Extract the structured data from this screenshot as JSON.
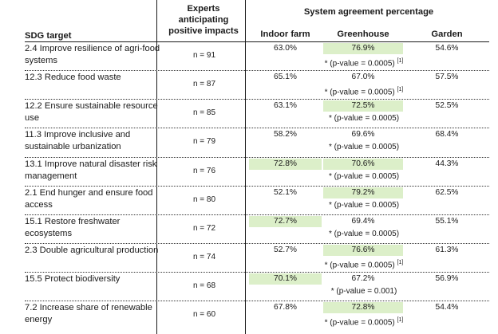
{
  "header": {
    "sdg_target": "SDG target",
    "experts": "Experts anticipating positive impacts",
    "system_agreement": "System agreement percentage",
    "indoor_farm": "Indoor farm",
    "greenhouse": "Greenhouse",
    "garden": "Garden"
  },
  "rows": [
    {
      "sdg": "2.4 Improve resilience of agri-food systems",
      "n": "n = 91",
      "indoor": "63.0%",
      "indoor_hi": false,
      "greenhouse": "76.9%",
      "greenhouse_hi": true,
      "garden": "54.6%",
      "note": "* (p-value = 0.0005)",
      "ref": "[1]"
    },
    {
      "sdg": "12.3 Reduce food waste",
      "n": "n = 87",
      "indoor": "65.1%",
      "indoor_hi": false,
      "greenhouse": "67.0%",
      "greenhouse_hi": false,
      "garden": "57.5%",
      "note": "* (p-value = 0.0005)",
      "ref": "[1]"
    },
    {
      "sdg": "12.2 Ensure sustainable resource use",
      "n": "n = 85",
      "indoor": "63.1%",
      "indoor_hi": false,
      "greenhouse": "72.5%",
      "greenhouse_hi": true,
      "garden": "52.5%",
      "note": "* (p-value = 0.0005)",
      "ref": ""
    },
    {
      "sdg": "11.3 Improve inclusive and sustainable urbanization",
      "n": "n = 79",
      "indoor": "58.2%",
      "indoor_hi": false,
      "greenhouse": "69.6%",
      "greenhouse_hi": false,
      "garden": "68.4%",
      "note": "* (p-value = 0.0005)",
      "ref": ""
    },
    {
      "sdg": "13.1 Improve natural disaster risk management",
      "n": "n = 76",
      "indoor": "72.8%",
      "indoor_hi": true,
      "greenhouse": "70.6%",
      "greenhouse_hi": true,
      "garden": "44.3%",
      "note": "* (p-value = 0.0005)",
      "ref": ""
    },
    {
      "sdg": "2.1 End hunger and ensure food access",
      "n": "n = 80",
      "indoor": "52.1%",
      "indoor_hi": false,
      "greenhouse": "79.2%",
      "greenhouse_hi": true,
      "garden": "62.5%",
      "note": "* (p-value = 0.0005)",
      "ref": ""
    },
    {
      "sdg": "15.1 Restore freshwater ecosystems",
      "n": "n = 72",
      "indoor": "72.7%",
      "indoor_hi": true,
      "greenhouse": "69.4%",
      "greenhouse_hi": false,
      "garden": "55.1%",
      "note": "* (p-value = 0.0005)",
      "ref": ""
    },
    {
      "sdg": "2.3 Double agricultural production",
      "n": "n = 74",
      "indoor": "52.7%",
      "indoor_hi": false,
      "greenhouse": "76.6%",
      "greenhouse_hi": true,
      "garden": "61.3%",
      "note": "* (p-value = 0.0005)",
      "ref": "[1]"
    },
    {
      "sdg": "15.5 Protect biodiversity",
      "n": "n = 68",
      "indoor": "70.1%",
      "indoor_hi": true,
      "greenhouse": "67.2%",
      "greenhouse_hi": false,
      "garden": "56.9%",
      "note": "* (p-value = 0.001)",
      "ref": ""
    },
    {
      "sdg": "7.2 Increase share of renewable energy",
      "n": "n = 60",
      "indoor": "67.8%",
      "indoor_hi": false,
      "greenhouse": "72.8%",
      "greenhouse_hi": true,
      "garden": "54.4%",
      "note": "* (p-value = 0.0005)",
      "ref": "[1]"
    }
  ]
}
